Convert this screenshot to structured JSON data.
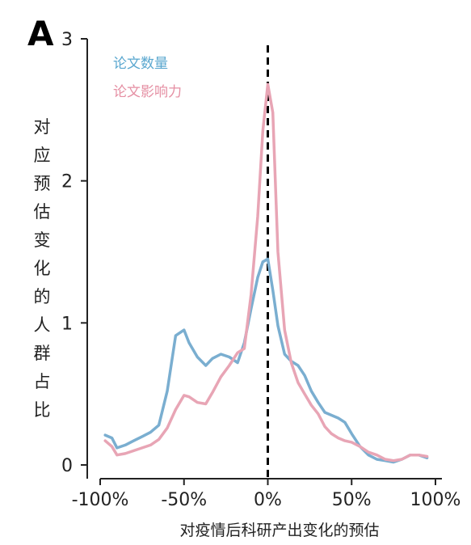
{
  "panel_label": "A",
  "colors": {
    "blue": "#7aaed0",
    "pink": "#e8a5b5",
    "axis": "#222222",
    "refline": "#000000"
  },
  "chart_data": {
    "type": "line",
    "title": "",
    "xlabel": "对疫情后科研产出变化的预估",
    "ylabel": "对应预估变化的人群占比",
    "xlim": [
      -100,
      100
    ],
    "ylim": [
      0,
      3
    ],
    "xticks": [
      -100,
      -50,
      0,
      50,
      100
    ],
    "xtick_labels": [
      "-100%",
      "-50%",
      "0%",
      "50%",
      "100%"
    ],
    "yticks": [
      0,
      1,
      2,
      3
    ],
    "ytick_labels": [
      "0",
      "1",
      "2",
      "3"
    ],
    "reference_line": {
      "x": 0,
      "style": "dashed"
    },
    "legend": {
      "placement": "top-left"
    },
    "grid": false,
    "series": [
      {
        "name": "论文数量",
        "color": "#7aaed0",
        "x": [
          -97,
          -93,
          -90,
          -85,
          -80,
          -75,
          -70,
          -65,
          -60,
          -55,
          -50,
          -47,
          -42,
          -37,
          -33,
          -28,
          -23,
          -18,
          -14,
          -10,
          -6,
          -3,
          0,
          3,
          6,
          10,
          14,
          18,
          22,
          26,
          30,
          34,
          38,
          42,
          46,
          50,
          55,
          60,
          65,
          70,
          75,
          80,
          85,
          90,
          95
        ],
        "values": [
          0.21,
          0.19,
          0.12,
          0.14,
          0.17,
          0.2,
          0.23,
          0.28,
          0.52,
          0.91,
          0.95,
          0.86,
          0.76,
          0.7,
          0.75,
          0.78,
          0.76,
          0.72,
          0.86,
          1.1,
          1.32,
          1.43,
          1.45,
          1.23,
          0.98,
          0.78,
          0.73,
          0.7,
          0.63,
          0.52,
          0.44,
          0.37,
          0.35,
          0.33,
          0.3,
          0.22,
          0.13,
          0.07,
          0.04,
          0.03,
          0.02,
          0.04,
          0.07,
          0.07,
          0.05
        ]
      },
      {
        "name": "论文影响力",
        "color": "#e8a5b5",
        "x": [
          -97,
          -93,
          -90,
          -85,
          -80,
          -75,
          -70,
          -65,
          -60,
          -55,
          -50,
          -47,
          -42,
          -37,
          -33,
          -28,
          -23,
          -18,
          -14,
          -10,
          -6,
          -3,
          0,
          3,
          6,
          10,
          14,
          18,
          22,
          26,
          30,
          34,
          38,
          42,
          46,
          50,
          55,
          60,
          65,
          70,
          75,
          80,
          85,
          90,
          95
        ],
        "values": [
          0.17,
          0.13,
          0.07,
          0.08,
          0.1,
          0.12,
          0.14,
          0.18,
          0.26,
          0.39,
          0.49,
          0.48,
          0.44,
          0.43,
          0.51,
          0.62,
          0.7,
          0.79,
          0.82,
          1.2,
          1.75,
          2.35,
          2.68,
          2.48,
          1.5,
          0.95,
          0.72,
          0.58,
          0.5,
          0.42,
          0.36,
          0.27,
          0.22,
          0.19,
          0.17,
          0.16,
          0.13,
          0.09,
          0.07,
          0.04,
          0.03,
          0.04,
          0.07,
          0.07,
          0.06
        ]
      }
    ]
  }
}
